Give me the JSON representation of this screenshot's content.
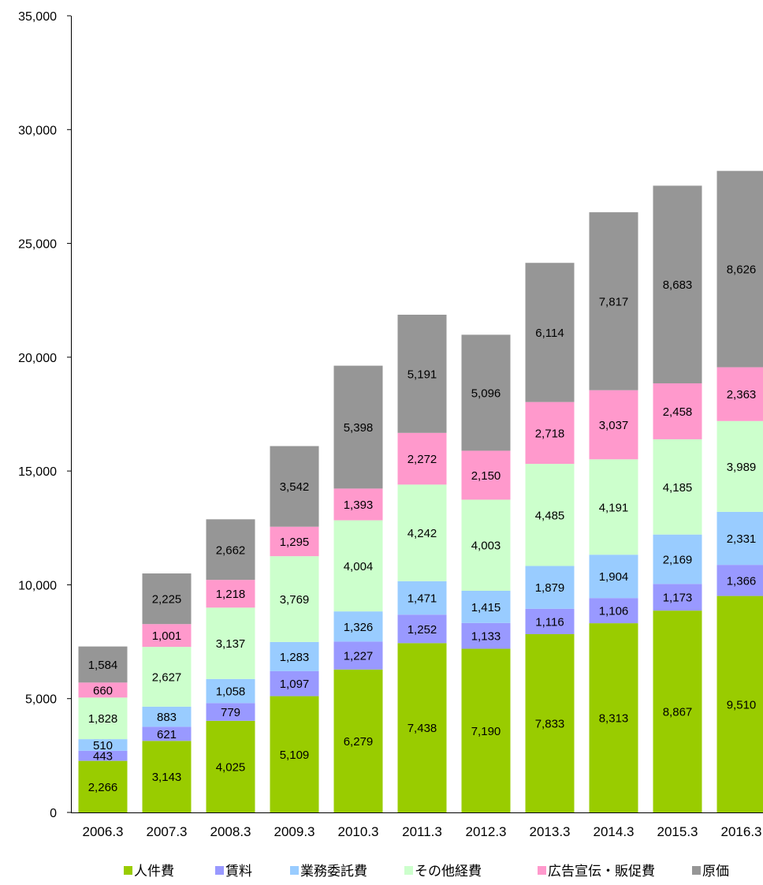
{
  "chart_data": {
    "type": "bar",
    "stacked": true,
    "title": "",
    "xlabel": "",
    "ylabel": "",
    "ylim": [
      0,
      35000
    ],
    "yticks": [
      0,
      5000,
      10000,
      15000,
      20000,
      25000,
      30000,
      35000
    ],
    "ytick_labels": [
      "0",
      "5,000",
      "10,000",
      "15,000",
      "20,000",
      "25,000",
      "30,000",
      "35,000"
    ],
    "grid": false,
    "legend_position": "bottom",
    "categories": [
      "2006.3",
      "2007.3",
      "2008.3",
      "2009.3",
      "2010.3",
      "2011.3",
      "2012.3",
      "2013.3",
      "2014.3",
      "2015.3",
      "2016.3"
    ],
    "series": [
      {
        "name": "人件費",
        "color": "#99cc00",
        "values": [
          2266,
          3143,
          4025,
          5109,
          6279,
          7438,
          7190,
          7833,
          8313,
          8867,
          9510
        ]
      },
      {
        "name": "賃料",
        "color": "#9999ff",
        "values": [
          443,
          621,
          779,
          1097,
          1227,
          1252,
          1133,
          1116,
          1106,
          1173,
          1366
        ]
      },
      {
        "name": "業務委託費",
        "color": "#99ccff",
        "values": [
          510,
          883,
          1058,
          1283,
          1326,
          1471,
          1415,
          1879,
          1904,
          2169,
          2331
        ]
      },
      {
        "name": "その他経費",
        "color": "#ccffcc",
        "values": [
          1828,
          2627,
          3137,
          3769,
          4004,
          4242,
          4003,
          4485,
          4191,
          4185,
          3989
        ]
      },
      {
        "name": "広告宣伝・販促費",
        "color": "#ff99cc",
        "values": [
          660,
          1001,
          1218,
          1295,
          1393,
          2272,
          2150,
          2718,
          3037,
          2458,
          2363
        ]
      },
      {
        "name": "原価",
        "color": "#969696",
        "values": [
          1584,
          2225,
          2662,
          3542,
          5398,
          5191,
          5096,
          6114,
          7817,
          8683,
          8626
        ]
      }
    ]
  }
}
